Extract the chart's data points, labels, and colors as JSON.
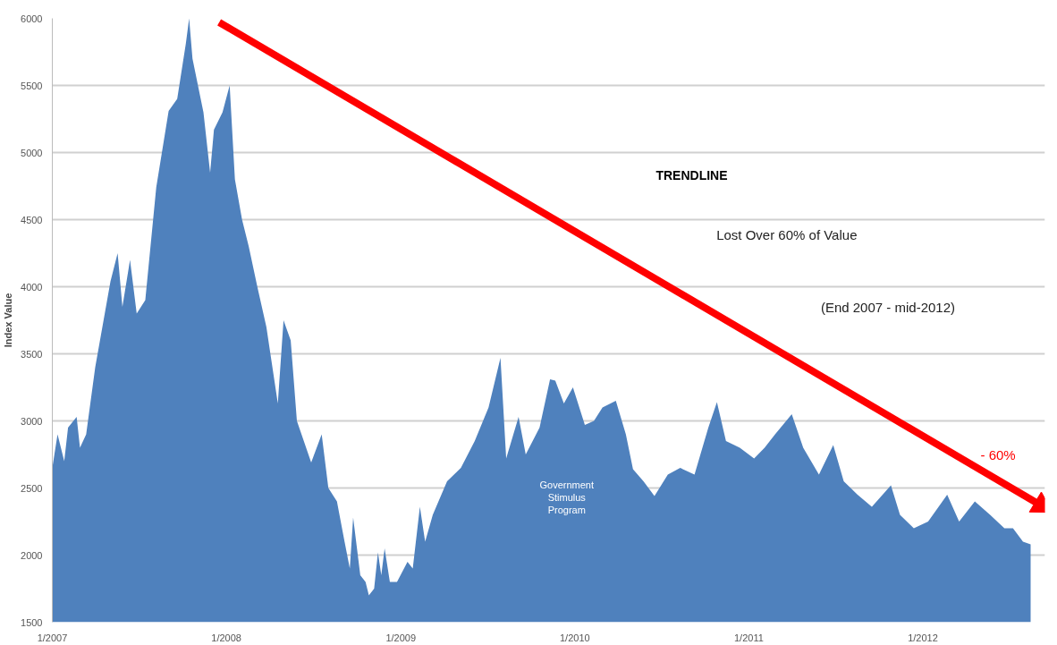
{
  "chart_data": {
    "type": "area",
    "ylabel": "Index Value",
    "x": [
      "2007-01-01",
      "2007-01-12",
      "2007-01-26",
      "2007-02-03",
      "2007-02-21",
      "2007-02-28",
      "2007-03-13",
      "2007-04-01",
      "2007-05-03",
      "2007-05-18",
      "2007-05-28",
      "2007-06-13",
      "2007-06-27",
      "2007-07-15",
      "2007-08-07",
      "2007-09-02",
      "2007-09-20",
      "2007-10-08",
      "2007-10-15",
      "2007-10-22",
      "2007-11-14",
      "2007-11-28",
      "2007-12-06",
      "2007-12-24",
      "2008-01-08",
      "2008-01-19",
      "2008-02-03",
      "2008-02-17",
      "2008-03-06",
      "2008-03-25",
      "2008-04-18",
      "2008-04-30",
      "2008-05-15",
      "2008-05-28",
      "2008-06-27",
      "2008-07-19",
      "2008-08-02",
      "2008-08-20",
      "2008-09-05",
      "2008-09-16",
      "2008-09-23",
      "2008-10-08",
      "2008-10-19",
      "2008-10-26",
      "2008-11-06",
      "2008-11-14",
      "2008-11-21",
      "2008-11-28",
      "2008-12-09",
      "2008-12-24",
      "2009-01-15",
      "2009-01-26",
      "2009-02-10",
      "2009-02-21",
      "2009-03-09",
      "2009-04-08",
      "2009-05-07",
      "2009-06-05",
      "2009-07-04",
      "2009-07-29",
      "2009-08-10",
      "2009-09-05",
      "2009-09-20",
      "2009-10-19",
      "2009-11-10",
      "2009-11-21",
      "2009-12-09",
      "2009-12-28",
      "2010-01-22",
      "2010-02-10",
      "2010-02-28",
      "2010-03-28",
      "2010-04-18",
      "2010-05-03",
      "2010-05-25",
      "2010-06-17",
      "2010-07-15",
      "2010-08-10",
      "2010-09-09",
      "2010-10-08",
      "2010-10-26",
      "2010-11-14",
      "2010-12-13",
      "2011-01-12",
      "2011-02-03",
      "2011-02-25",
      "2011-04-01",
      "2011-04-25",
      "2011-05-28",
      "2011-06-27",
      "2011-07-19",
      "2011-08-17",
      "2011-09-16",
      "2011-10-26",
      "2011-11-14",
      "2011-12-13",
      "2012-01-12",
      "2012-02-21",
      "2012-03-17",
      "2012-04-19",
      "2012-05-21",
      "2012-06-20",
      "2012-07-08",
      "2012-07-29",
      "2012-08-14"
    ],
    "series": [
      {
        "color": "#4f81bd",
        "values": [
          2650,
          2900,
          2700,
          2950,
          3030,
          2800,
          2900,
          3400,
          4040,
          4250,
          3850,
          4200,
          3800,
          3900,
          4740,
          5310,
          5400,
          5810,
          6000,
          5700,
          5300,
          4850,
          5170,
          5300,
          5500,
          4800,
          4500,
          4300,
          4000,
          3700,
          3130,
          3750,
          3600,
          3000,
          2690,
          2900,
          2500,
          2400,
          2100,
          1900,
          2280,
          1850,
          1800,
          1700,
          1750,
          2020,
          1850,
          2050,
          1800,
          1800,
          1950,
          1900,
          2360,
          2100,
          2300,
          2550,
          2650,
          2850,
          3100,
          3470,
          2720,
          3030,
          2750,
          2950,
          3310,
          3300,
          3130,
          3250,
          2970,
          3000,
          3100,
          3150,
          2900,
          2640,
          2550,
          2440,
          2600,
          2650,
          2600,
          2950,
          3140,
          2850,
          2800,
          2720,
          2800,
          2900,
          3050,
          2800,
          2600,
          2820,
          2550,
          2450,
          2360,
          2520,
          2300,
          2200,
          2250,
          2450,
          2250,
          2400,
          2300,
          2200,
          2200,
          2100,
          2080
        ]
      },
      {
        "type": "line",
        "color": "#ff0000",
        "x": [
          "2007-12-17",
          "2012-09-05"
        ],
        "values": [
          5970,
          2370
        ]
      }
    ],
    "xlim": [
      "2007-01-01",
      "2012-09-13"
    ],
    "xticks": [
      {
        "value": "2007-01-01",
        "label": "1/2007"
      },
      {
        "value": "2008-01-01",
        "label": "1/2008"
      },
      {
        "value": "2009-01-01",
        "label": "1/2009"
      },
      {
        "value": "2010-01-01",
        "label": "1/2010"
      },
      {
        "value": "2011-01-01",
        "label": "1/2011"
      },
      {
        "value": "2012-01-01",
        "label": "1/2012"
      }
    ],
    "ylim": [
      1500,
      6000
    ],
    "yticks": [
      1500,
      2000,
      2500,
      3000,
      3500,
      4000,
      4500,
      5000,
      5500,
      6000
    ],
    "grid": "y",
    "annotations": [
      "TRENDLINE",
      "Lost Over 60% of Value",
      "(End 2007 - mid-2012)",
      "- 60%",
      "Government\nStimulus\nProgram"
    ]
  }
}
